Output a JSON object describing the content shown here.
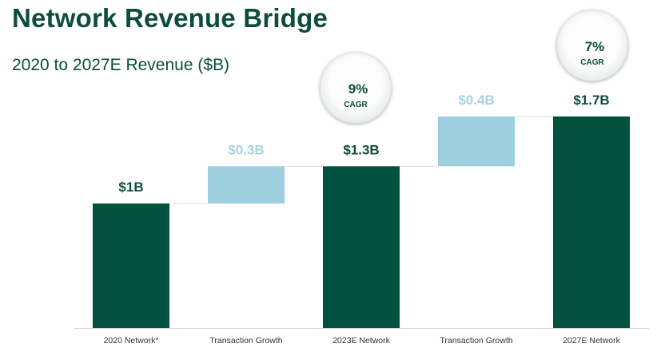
{
  "header": {
    "title": "Network Revenue Bridge",
    "subtitle": "2020 to 2027E Revenue ($B)"
  },
  "colors": {
    "total": "#02513f",
    "increment": "#9ecfe0",
    "increment_label": "#a8d4e4",
    "total_label": "#0d4d3c",
    "connector": "#dcdcdc",
    "axis": "#cfcfcf"
  },
  "chart_data": {
    "type": "bar",
    "subtype": "waterfall",
    "title": "Network Revenue Bridge",
    "subtitle": "2020 to 2027E Revenue ($B)",
    "categories": [
      "2020 Network*",
      "Transaction Growth",
      "2023E Network",
      "Transaction Growth",
      "2027E Network"
    ],
    "values": [
      1.0,
      0.3,
      1.3,
      0.4,
      1.7
    ],
    "bar_kind": [
      "total",
      "increment",
      "total",
      "increment",
      "total"
    ],
    "base": [
      0,
      1.0,
      0,
      1.3,
      0
    ],
    "data_labels": [
      "$1B",
      "$0.3B",
      "$1.3B",
      "$0.4B",
      "$1.7B"
    ],
    "ylim": [
      0,
      1.7
    ],
    "xlabel": "",
    "ylabel": "",
    "grid": false,
    "annotations": [
      {
        "type": "cagr",
        "value": "9%",
        "label": "CAGR",
        "category_index": 2
      },
      {
        "type": "cagr",
        "value": "7%",
        "label": "CAGR",
        "category_index": 4
      }
    ]
  }
}
